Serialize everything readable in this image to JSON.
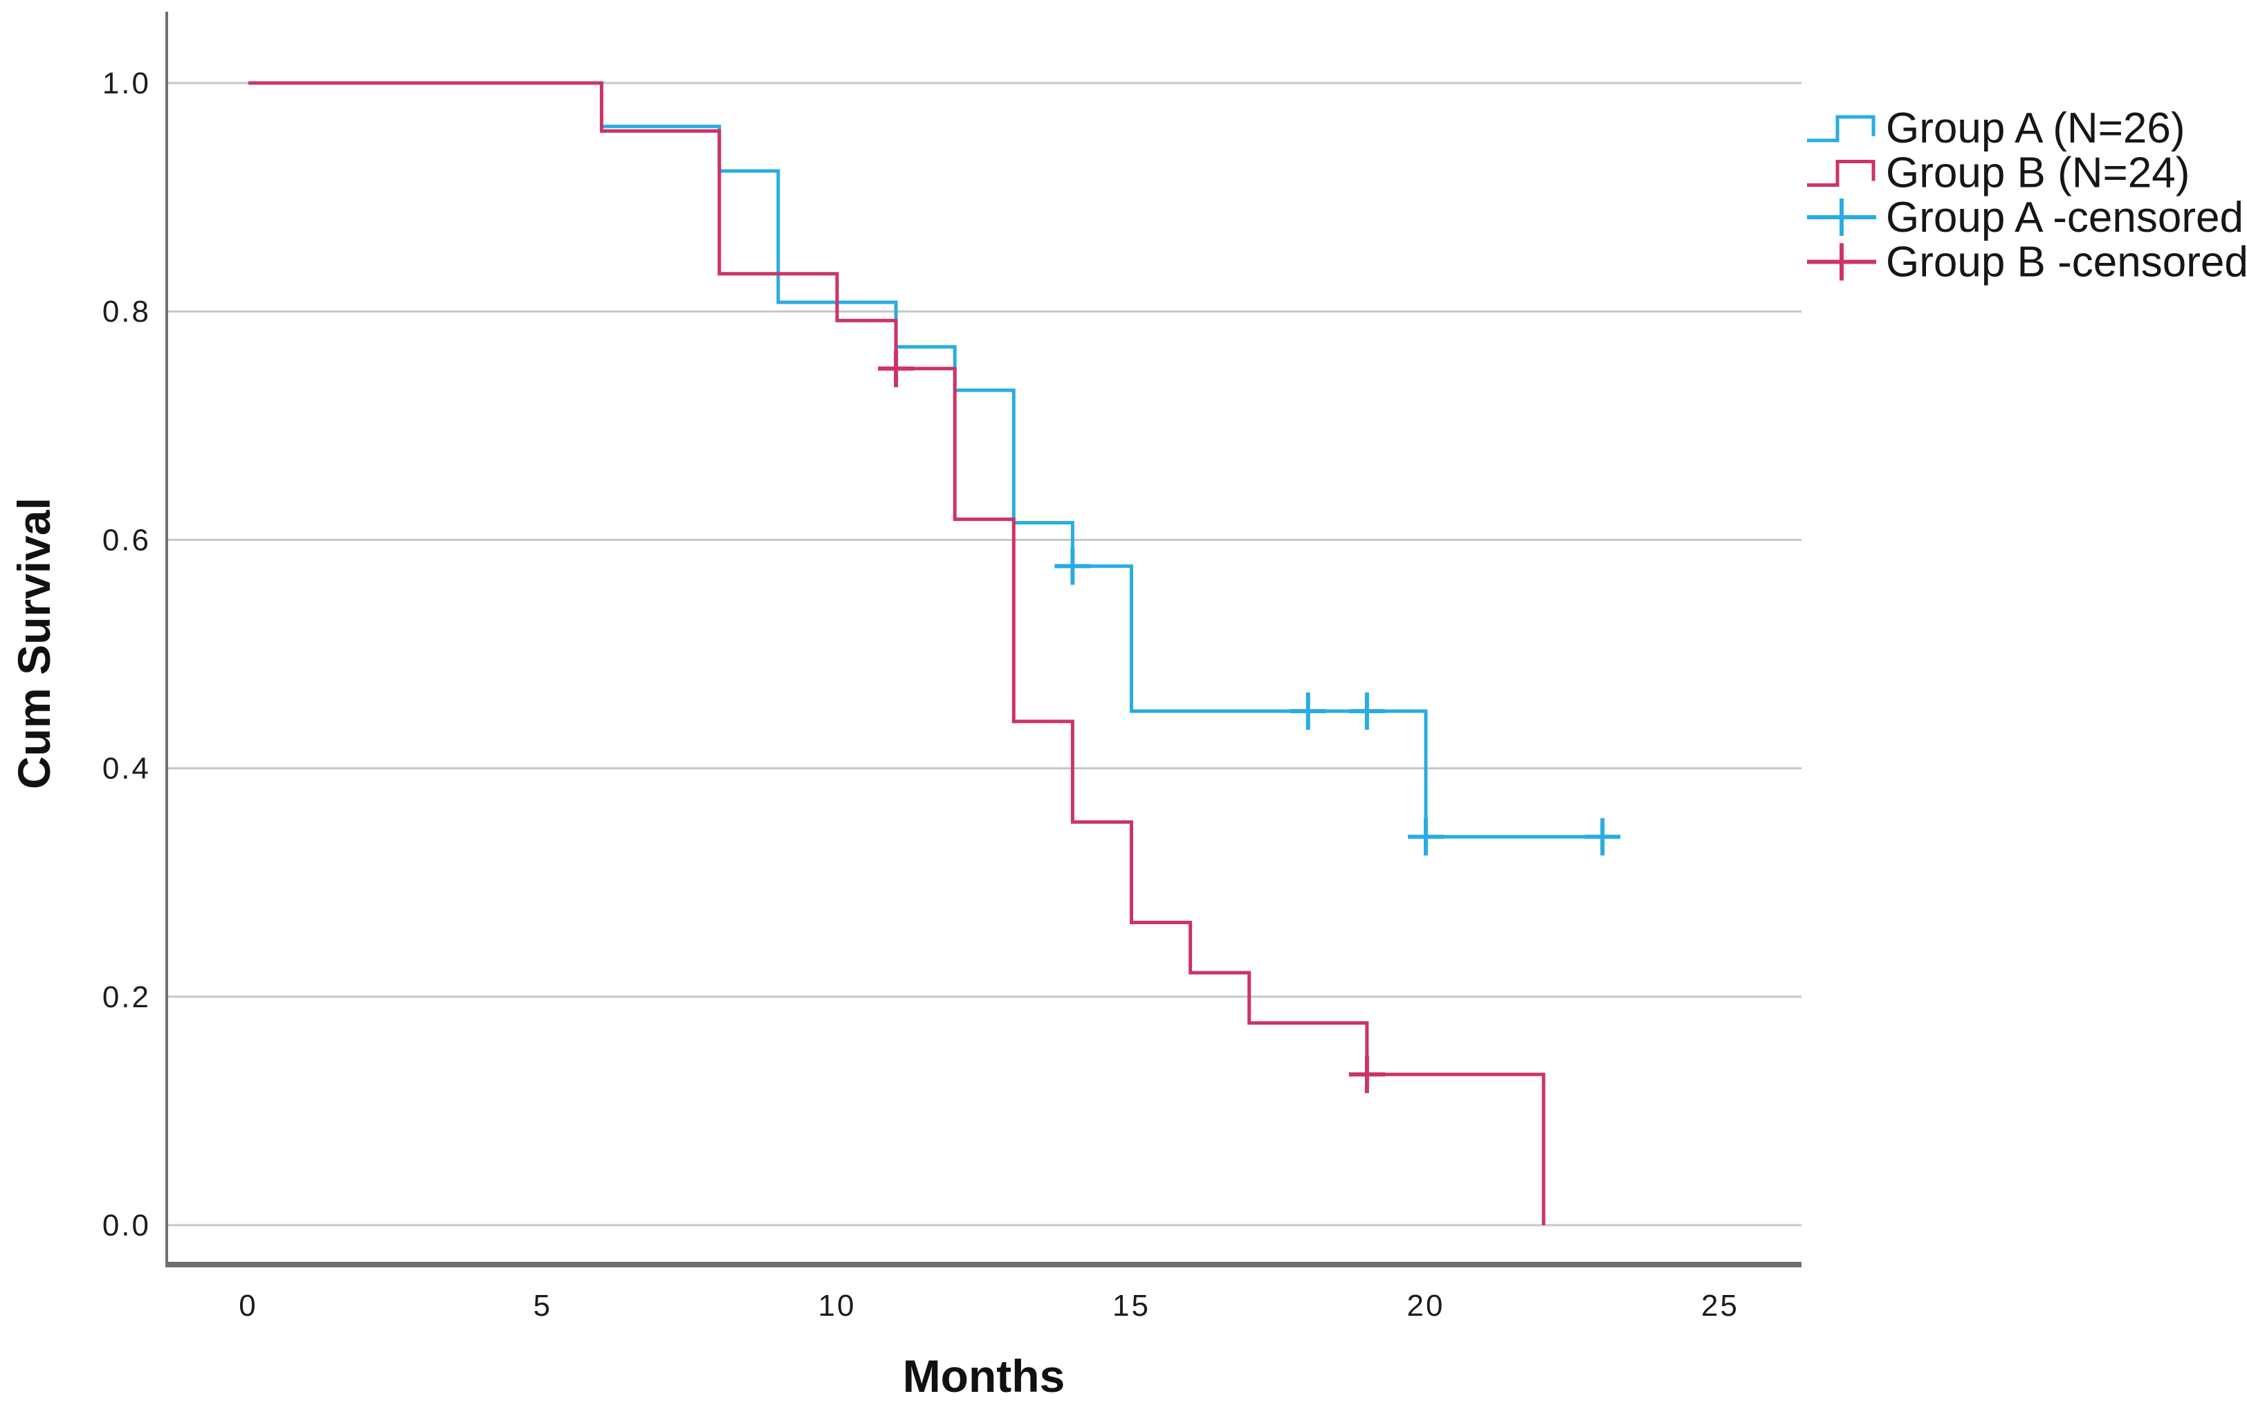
{
  "chart_data": {
    "type": "line",
    "subtype": "kaplan-meier-step",
    "title": "",
    "xlabel": "Months",
    "ylabel": "Cum Survival",
    "x_ticks": [
      0,
      5,
      10,
      15,
      20,
      25
    ],
    "y_ticks": [
      "1.0",
      "0.8",
      "0.6",
      "0.4",
      "0.2",
      "0.0"
    ],
    "xlim": [
      -1.4,
      26.4
    ],
    "ylim": [
      -0.035,
      1.064
    ],
    "grid": "horizontal-only",
    "legend_position": "top-right-outside",
    "colors": {
      "group_a": "#29ACE3",
      "group_b": "#CC3466",
      "gridline": "#C6C6C6",
      "axis": "#6E6E6E",
      "text": "#1c1c1c"
    },
    "series": [
      {
        "name": "Group A (N=26)",
        "key": "group-a",
        "color": "#29ACE3",
        "steps": [
          [
            0,
            1.0
          ],
          [
            6,
            0.962
          ],
          [
            8,
            0.923
          ],
          [
            9,
            0.808
          ],
          [
            11,
            0.769
          ],
          [
            12,
            0.731
          ],
          [
            13,
            0.615
          ],
          [
            14,
            0.577
          ],
          [
            15,
            0.45
          ],
          [
            20,
            0.34
          ],
          [
            23,
            0.34
          ]
        ],
        "censored": [
          [
            14,
            0.577
          ],
          [
            18,
            0.45
          ],
          [
            19,
            0.45
          ],
          [
            20,
            0.34
          ],
          [
            23,
            0.34
          ]
        ]
      },
      {
        "name": "Group B (N=24)",
        "key": "group-b",
        "color": "#CC3466",
        "steps": [
          [
            0,
            1.0
          ],
          [
            6,
            0.958
          ],
          [
            8,
            0.833
          ],
          [
            10,
            0.792
          ],
          [
            11,
            0.75
          ],
          [
            12,
            0.618
          ],
          [
            13,
            0.441
          ],
          [
            14,
            0.353
          ],
          [
            15,
            0.265
          ],
          [
            16,
            0.221
          ],
          [
            17,
            0.177
          ],
          [
            19,
            0.132
          ],
          [
            22,
            0.0
          ]
        ],
        "censored": [
          [
            11,
            0.75
          ],
          [
            19,
            0.132
          ]
        ]
      }
    ]
  },
  "legend": {
    "entries": [
      {
        "label": "Group A (N=26)",
        "series": 0,
        "symbol": "step"
      },
      {
        "label": "Group B (N=24)",
        "series": 1,
        "symbol": "step"
      },
      {
        "label": "Group A -censored",
        "series": 0,
        "symbol": "censor"
      },
      {
        "label": "Group B -censored",
        "series": 1,
        "symbol": "censor"
      }
    ]
  }
}
